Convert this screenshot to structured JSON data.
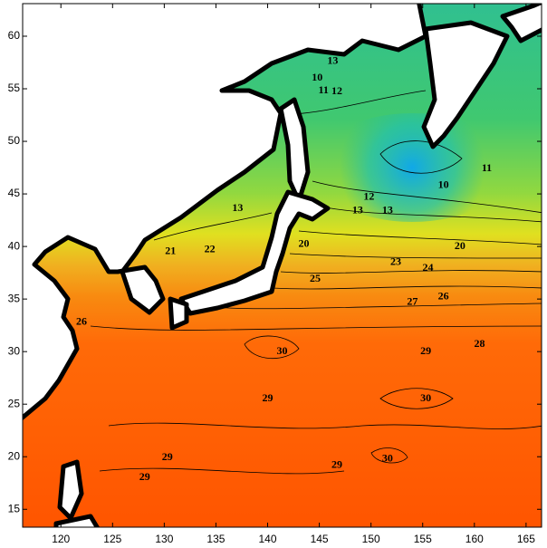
{
  "chart_data": {
    "type": "contour-map",
    "xlim": [
      116.3,
      166.5
    ],
    "ylim": [
      13.3,
      63.1
    ],
    "xticks": [
      120,
      125,
      130,
      135,
      140,
      145,
      150,
      155,
      160,
      165
    ],
    "yticks": [
      15,
      20,
      25,
      30,
      35,
      40,
      45,
      50,
      55,
      60
    ],
    "contour_labels": [
      {
        "text": "13",
        "lon": 146.3,
        "lat": 57.6
      },
      {
        "text": "10",
        "lon": 144.8,
        "lat": 56.0
      },
      {
        "text": "11",
        "lon": 145.4,
        "lat": 54.8
      },
      {
        "text": "12",
        "lon": 146.7,
        "lat": 54.7
      },
      {
        "text": "10",
        "lon": 157.0,
        "lat": 45.8
      },
      {
        "text": "11",
        "lon": 161.2,
        "lat": 47.4
      },
      {
        "text": "13",
        "lon": 137.1,
        "lat": 43.6
      },
      {
        "text": "12",
        "lon": 149.8,
        "lat": 44.7
      },
      {
        "text": "13",
        "lon": 148.7,
        "lat": 43.4
      },
      {
        "text": "13",
        "lon": 151.6,
        "lat": 43.4
      },
      {
        "text": "20",
        "lon": 143.5,
        "lat": 40.2
      },
      {
        "text": "21",
        "lon": 130.6,
        "lat": 39.5
      },
      {
        "text": "22",
        "lon": 134.4,
        "lat": 39.7
      },
      {
        "text": "23",
        "lon": 152.4,
        "lat": 38.5
      },
      {
        "text": "24",
        "lon": 155.5,
        "lat": 37.9
      },
      {
        "text": "20",
        "lon": 158.6,
        "lat": 40.0
      },
      {
        "text": "25",
        "lon": 144.6,
        "lat": 36.9
      },
      {
        "text": "26",
        "lon": 122.0,
        "lat": 32.8
      },
      {
        "text": "26",
        "lon": 157.0,
        "lat": 35.2
      },
      {
        "text": "27",
        "lon": 154.0,
        "lat": 34.7
      },
      {
        "text": "28",
        "lon": 160.5,
        "lat": 30.7
      },
      {
        "text": "29",
        "lon": 155.3,
        "lat": 30.0
      },
      {
        "text": "30",
        "lon": 141.4,
        "lat": 30.0
      },
      {
        "text": "29",
        "lon": 140.0,
        "lat": 25.5
      },
      {
        "text": "30",
        "lon": 155.3,
        "lat": 25.5
      },
      {
        "text": "29",
        "lon": 130.3,
        "lat": 19.9
      },
      {
        "text": "29",
        "lon": 146.7,
        "lat": 19.2
      },
      {
        "text": "30",
        "lon": 151.6,
        "lat": 19.8
      },
      {
        "text": "29",
        "lon": 128.1,
        "lat": 18.0
      }
    ]
  }
}
